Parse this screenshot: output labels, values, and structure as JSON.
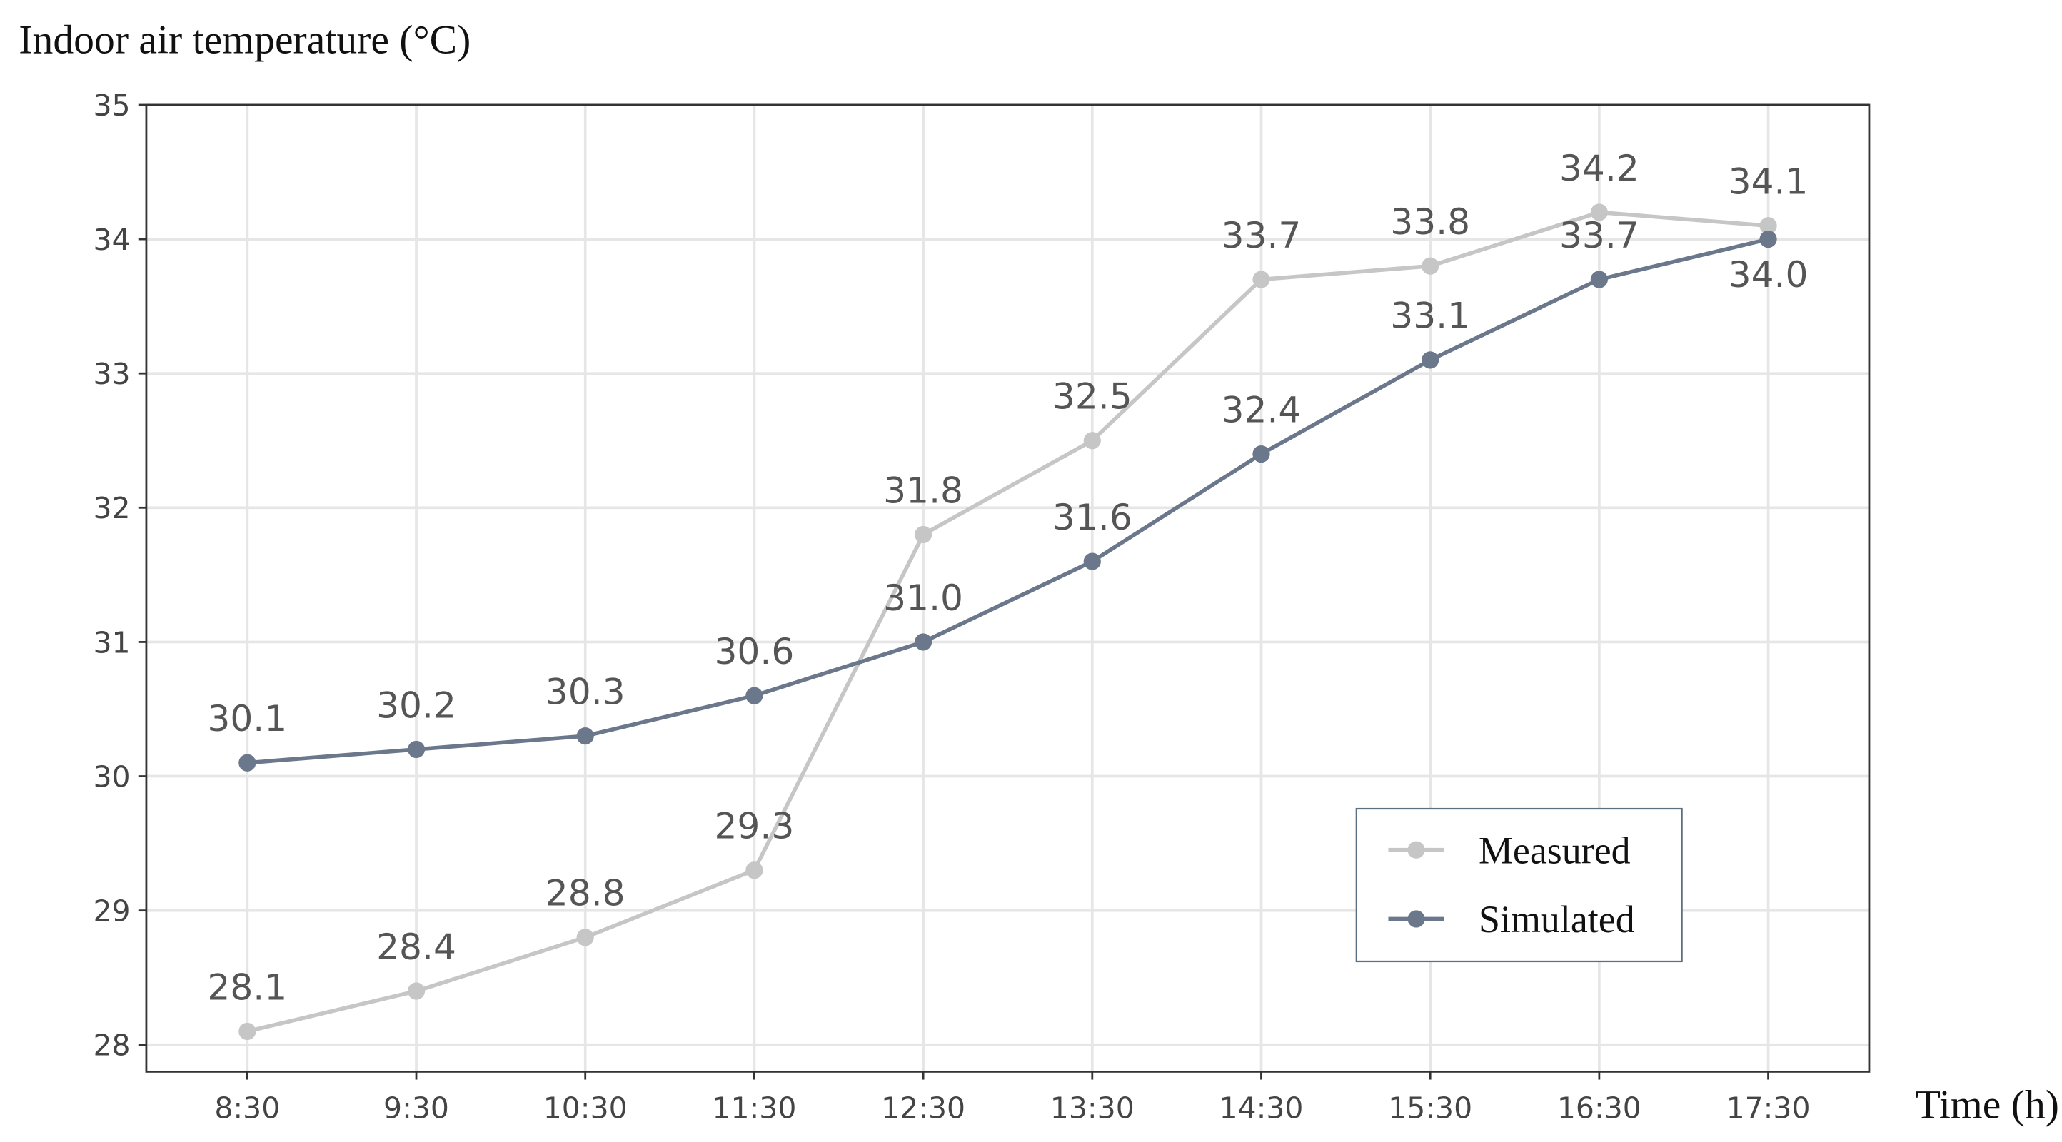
{
  "chart_data": {
    "type": "line",
    "y_label": "Indoor air temperature (°C)",
    "x_label": "Time (h)",
    "categories": [
      "8:30",
      "9:30",
      "10:30",
      "11:30",
      "12:30",
      "13:30",
      "14:30",
      "15:30",
      "16:30",
      "17:30"
    ],
    "series": [
      {
        "name": "Measured",
        "color": "#c6c6c6",
        "values": [
          28.1,
          28.4,
          28.8,
          29.3,
          31.8,
          32.5,
          33.7,
          33.8,
          34.2,
          34.1
        ]
      },
      {
        "name": "Simulated",
        "color": "#6b778b",
        "values": [
          30.1,
          30.2,
          30.3,
          30.6,
          31.0,
          31.6,
          32.4,
          33.1,
          33.7,
          34.0
        ],
        "value_labels": [
          "30.1",
          "30.2",
          "30.3",
          "30.6",
          "31.0",
          "31.6",
          "32.4",
          "33.1",
          "33.7",
          "34.0"
        ]
      }
    ],
    "ylim": [
      27.8,
      35
    ],
    "yticks": [
      28,
      29,
      30,
      31,
      32,
      33,
      34,
      35
    ],
    "grid": true,
    "legend": "lower right"
  }
}
